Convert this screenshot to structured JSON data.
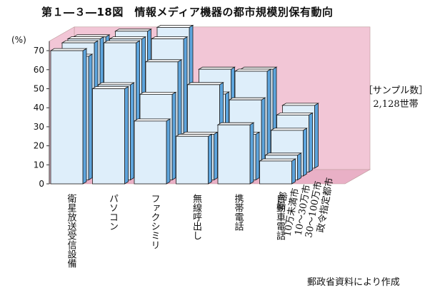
{
  "figure_title": "第１―３―18図　情報メディア機器の都市規模別保有動向",
  "sample_note": {
    "label": "［サンプル数］",
    "count": "2,128世帯"
  },
  "source_note": "郵政省資料により作成",
  "colors": {
    "wall": "#f2c6d6",
    "floor": "#e9b0c6",
    "bar_front": "#deeefa",
    "bar_side": "#5da4dc",
    "bar_top": "#ffffff",
    "outline": "#1a1a1a"
  },
  "chart_data": {
    "type": "bar",
    "style": "3d-clustered",
    "title": "",
    "ylabel": "(%)",
    "ylim": [
      0,
      75
    ],
    "yticks": [
      0,
      10,
      20,
      30,
      40,
      50,
      60,
      70
    ],
    "categories": [
      "衛星放送受信設備",
      "パソコン",
      "ファクシミリ",
      "無線呼出し",
      "携帯電話",
      "自動車電話"
    ],
    "series": [
      {
        "name": "政令指定都市",
        "values": [
          69,
          72,
          74,
          52,
          52,
          33
        ]
      },
      {
        "name": "30〜100万市",
        "values": [
          70,
          70,
          70,
          41,
          53,
          30
        ]
      },
      {
        "name": "10〜30万市",
        "values": [
          70,
          70,
          60,
          48,
          40,
          24
        ]
      },
      {
        "name": "10万未満市",
        "values": [
          65,
          50,
          45,
          24,
          24,
          13
        ]
      },
      {
        "name": "郡部",
        "values": [
          70,
          50,
          33,
          25,
          31,
          12
        ]
      }
    ]
  }
}
